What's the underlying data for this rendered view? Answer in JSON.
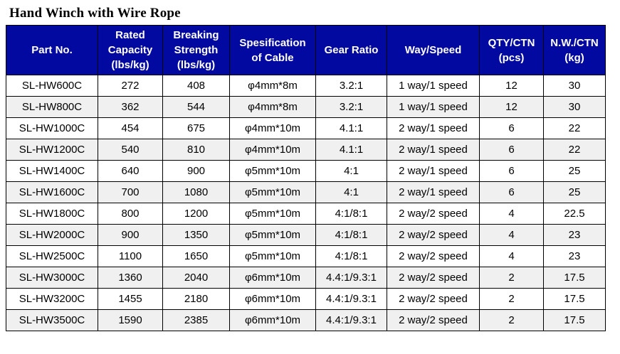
{
  "page": {
    "title": "Hand Winch with Wire Rope"
  },
  "colors": {
    "header_bg": "#0209A0",
    "header_text": "#FFFFFF",
    "row_bg": "#FFFFFF",
    "row_alt_bg": "#F0F0F0",
    "border_color": "#000000",
    "title_color": "#000000"
  },
  "table": {
    "columns": [
      {
        "id": "part-no",
        "label": "Part No.",
        "lines": [
          "Part No."
        ]
      },
      {
        "id": "rated-capacity",
        "label": "Rated Capacity (lbs/kg)",
        "lines": [
          "Rated",
          "Capacity",
          "(lbs/kg)"
        ]
      },
      {
        "id": "breaking-strength",
        "label": "Breaking Strength (lbs/kg)",
        "lines": [
          "Breaking",
          "Strength",
          "(lbs/kg)"
        ]
      },
      {
        "id": "cable-spec",
        "label": "Spesification of Cable",
        "lines": [
          "Spesification",
          "of Cable"
        ]
      },
      {
        "id": "gear-ratio",
        "label": "Gear Ratio",
        "lines": [
          "Gear Ratio"
        ]
      },
      {
        "id": "way-speed",
        "label": "Way/Speed",
        "lines": [
          "Way/Speed"
        ]
      },
      {
        "id": "qty-ctn",
        "label": "QTY/CTN (pcs)",
        "lines": [
          "QTY/CTN",
          "(pcs)"
        ]
      },
      {
        "id": "nw-ctn",
        "label": "N.W./CTN (kg)",
        "lines": [
          "N.W./CTN",
          "(kg)"
        ]
      }
    ],
    "rows": [
      [
        "SL-HW600C",
        "272",
        "408",
        "φ4mm*8m",
        "3.2:1",
        "1 way/1 speed",
        "12",
        "30"
      ],
      [
        "SL-HW800C",
        "362",
        "544",
        "φ4mm*8m",
        "3.2:1",
        "1 way/1 speed",
        "12",
        "30"
      ],
      [
        "SL-HW1000C",
        "454",
        "675",
        "φ4mm*10m",
        "4.1:1",
        "2 way/1 speed",
        "6",
        "22"
      ],
      [
        "SL-HW1200C",
        "540",
        "810",
        "φ4mm*10m",
        "4.1:1",
        "2 way/1 speed",
        "6",
        "22"
      ],
      [
        "SL-HW1400C",
        "640",
        "900",
        "φ5mm*10m",
        "4:1",
        "2 way/1 speed",
        "6",
        "25"
      ],
      [
        "SL-HW1600C",
        "700",
        "1080",
        "φ5mm*10m",
        "4:1",
        "2 way/1 speed",
        "6",
        "25"
      ],
      [
        "SL-HW1800C",
        "800",
        "1200",
        "φ5mm*10m",
        "4:1/8:1",
        "2 way/2 speed",
        "4",
        "22.5"
      ],
      [
        "SL-HW2000C",
        "900",
        "1350",
        "φ5mm*10m",
        "4:1/8:1",
        "2 way/2 speed",
        "4",
        "23"
      ],
      [
        "SL-HW2500C",
        "1100",
        "1650",
        "φ5mm*10m",
        "4:1/8:1",
        "2 way/2 speed",
        "4",
        "23"
      ],
      [
        "SL-HW3000C",
        "1360",
        "2040",
        "φ6mm*10m",
        "4.4:1/9.3:1",
        "2 way/2 speed",
        "2",
        "17.5"
      ],
      [
        "SL-HW3200C",
        "1455",
        "2180",
        "φ6mm*10m",
        "4.4:1/9.3:1",
        "2 way/2 speed",
        "2",
        "17.5"
      ],
      [
        "SL-HW3500C",
        "1590",
        "2385",
        "φ6mm*10m",
        "4.4:1/9.3:1",
        "2 way/2 speed",
        "2",
        "17.5"
      ]
    ]
  }
}
